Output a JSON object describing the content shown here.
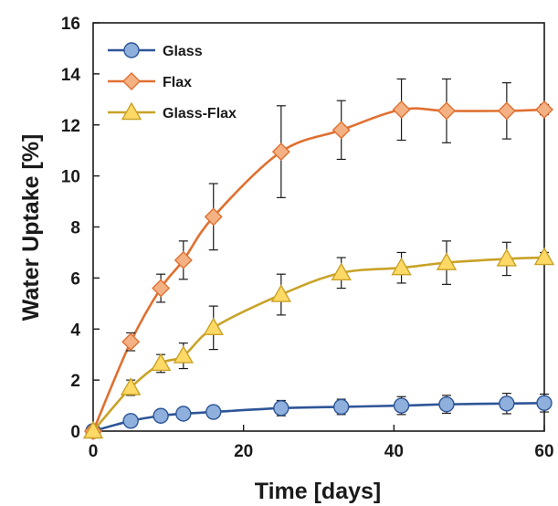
{
  "chart_data": {
    "type": "line",
    "title": "",
    "xlabel": "Time [days]",
    "ylabel": "Water Uptake [%]",
    "xlim": [
      0,
      60
    ],
    "ylim": [
      0,
      16
    ],
    "x_ticks": [
      "0",
      "20",
      "40",
      "60"
    ],
    "y_ticks": [
      "0",
      "2",
      "4",
      "6",
      "8",
      "10",
      "12",
      "14",
      "16"
    ],
    "grid": false,
    "legend_position": "top-left",
    "series": [
      {
        "name": "Glass",
        "color": "#4472c4",
        "line_color": "#2e5597",
        "fill": "#8fb0dc",
        "marker": "circle",
        "x": [
          0,
          5,
          9,
          12,
          16,
          25,
          33,
          41,
          47,
          55,
          60
        ],
        "values": [
          0.0,
          0.4,
          0.6,
          0.68,
          0.75,
          0.9,
          0.95,
          1.0,
          1.05,
          1.08,
          1.1
        ],
        "error": [
          0,
          0.1,
          0.15,
          0.15,
          0.2,
          0.3,
          0.3,
          0.35,
          0.35,
          0.4,
          0.35
        ]
      },
      {
        "name": "Flax",
        "color": "#ed7d31",
        "line_color": "#e07031",
        "fill": "#f4b183",
        "marker": "diamond",
        "x": [
          0,
          5,
          9,
          12,
          16,
          25,
          33,
          41,
          47,
          55,
          60
        ],
        "values": [
          0.0,
          3.5,
          5.6,
          6.7,
          8.4,
          10.95,
          11.8,
          12.6,
          12.55,
          12.55,
          12.6
        ],
        "error": [
          0,
          0.35,
          0.55,
          0.75,
          1.3,
          1.8,
          1.15,
          1.2,
          1.25,
          1.1,
          0.2
        ]
      },
      {
        "name": "Glass-Flax",
        "color": "#c9a227",
        "line_color": "#c9a227",
        "fill": "#ffd966",
        "marker": "triangle",
        "x": [
          0,
          5,
          9,
          12,
          16,
          25,
          33,
          41,
          47,
          55,
          60
        ],
        "values": [
          0.0,
          1.7,
          2.65,
          2.95,
          4.05,
          5.35,
          6.2,
          6.4,
          6.6,
          6.75,
          6.8
        ],
        "error": [
          0,
          0.3,
          0.35,
          0.5,
          0.85,
          0.8,
          0.6,
          0.6,
          0.85,
          0.65,
          0.2
        ]
      }
    ]
  }
}
